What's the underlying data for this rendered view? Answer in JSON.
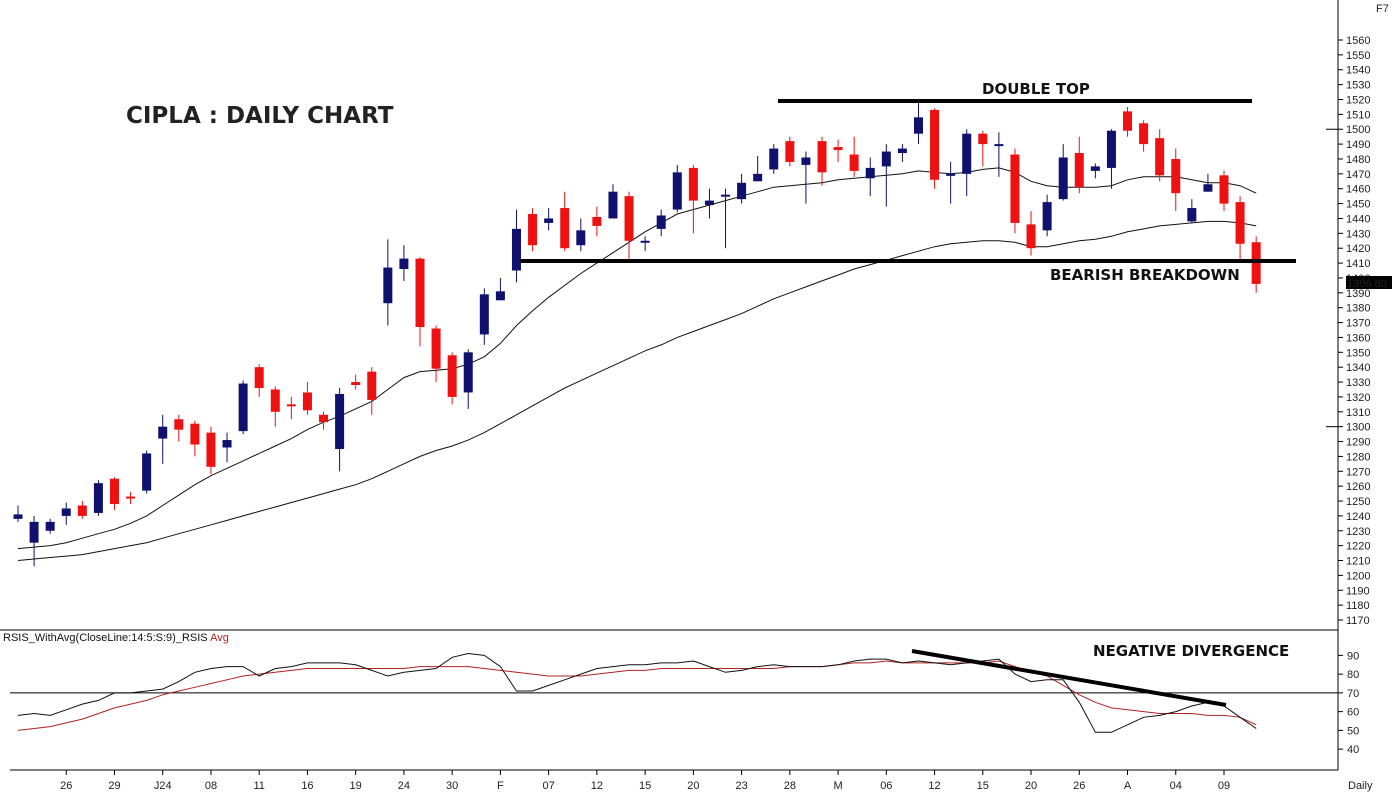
{
  "title": "CIPLA : DAILY CHART",
  "corner_label": "F7",
  "period_label": "Daily",
  "last_price_label": "1396.80",
  "annotations": {
    "double_top": "DOUBLE TOP",
    "breakdown": "BEARISH BREAKDOWN",
    "divergence": "NEGATIVE DIVERGENCE"
  },
  "indicator": {
    "label_prefix": "RSIS_WithAvg(CloseLine:14:5:S:9)_RSIS ",
    "label_avg": "Avg",
    "line_color": "#111111",
    "avg_color": "#b22222"
  },
  "colors": {
    "up": "#10106e",
    "down": "#ee1111",
    "ma": "#111111",
    "trendline": "#000000"
  },
  "chart_data": [
    {
      "type": "candlestick",
      "ylim": [
        1165,
        1565
      ],
      "y_ticks": [
        1170,
        1180,
        1190,
        1200,
        1210,
        1220,
        1230,
        1240,
        1250,
        1260,
        1270,
        1280,
        1290,
        1300,
        1310,
        1320,
        1330,
        1340,
        1350,
        1360,
        1370,
        1380,
        1390,
        1400,
        1410,
        1420,
        1430,
        1440,
        1450,
        1460,
        1470,
        1480,
        1490,
        1500,
        1510,
        1520,
        1530,
        1540,
        1550,
        1560
      ],
      "x_ticks": [
        "26",
        "29",
        "J24",
        "08",
        "11",
        "16",
        "19",
        "24",
        "30",
        "F",
        "07",
        "12",
        "15",
        "20",
        "23",
        "28",
        "M",
        "06",
        "12",
        "15",
        "20",
        "26",
        "A",
        "04",
        "09"
      ],
      "x_tick_index": [
        3,
        6,
        9,
        12,
        15,
        18,
        21,
        24,
        27,
        30,
        33,
        36,
        39,
        42,
        45,
        48,
        51,
        54,
        57,
        60,
        63,
        66,
        69,
        72,
        75
      ],
      "candles": [
        [
          1238,
          1241,
          1236,
          1247
        ],
        [
          1222,
          1236,
          1206,
          1240
        ],
        [
          1230,
          1236,
          1228,
          1238
        ],
        [
          1240,
          1245,
          1234,
          1249
        ],
        [
          1247,
          1240,
          1238,
          1250
        ],
        [
          1242,
          1262,
          1240,
          1264
        ],
        [
          1265,
          1248,
          1244,
          1266
        ],
        [
          1253,
          1252,
          1248,
          1256
        ],
        [
          1257,
          1282,
          1255,
          1284
        ],
        [
          1292,
          1300,
          1275,
          1308
        ],
        [
          1305,
          1298,
          1290,
          1308
        ],
        [
          1302,
          1288,
          1280,
          1304
        ],
        [
          1296,
          1273,
          1268,
          1300
        ],
        [
          1286,
          1291,
          1276,
          1296
        ],
        [
          1297,
          1329,
          1295,
          1331
        ],
        [
          1340,
          1326,
          1320,
          1342
        ],
        [
          1325,
          1310,
          1300,
          1327
        ],
        [
          1315,
          1314,
          1305,
          1320
        ],
        [
          1323,
          1311,
          1308,
          1330
        ],
        [
          1308,
          1303,
          1298,
          1310
        ],
        [
          1285,
          1322,
          1270,
          1326
        ],
        [
          1330,
          1328,
          1325,
          1335
        ],
        [
          1337,
          1318,
          1308,
          1340
        ],
        [
          1383,
          1407,
          1368,
          1426
        ],
        [
          1406,
          1413,
          1398,
          1422
        ],
        [
          1413,
          1367,
          1354,
          1414
        ],
        [
          1366,
          1339,
          1330,
          1368
        ],
        [
          1348,
          1320,
          1315,
          1350
        ],
        [
          1323,
          1350,
          1312,
          1352
        ],
        [
          1362,
          1389,
          1355,
          1393
        ],
        [
          1385,
          1391,
          1385,
          1400
        ],
        [
          1405,
          1433,
          1397,
          1446
        ],
        [
          1443,
          1422,
          1418,
          1447
        ],
        [
          1437,
          1440,
          1432,
          1447
        ],
        [
          1447,
          1420,
          1418,
          1458
        ],
        [
          1422,
          1432,
          1418,
          1440
        ],
        [
          1441,
          1435,
          1428,
          1448
        ],
        [
          1440,
          1458,
          1440,
          1463
        ],
        [
          1455,
          1425,
          1410,
          1458
        ],
        [
          1425,
          1425,
          1418,
          1428
        ],
        [
          1433,
          1442,
          1428,
          1446
        ],
        [
          1446,
          1471,
          1444,
          1476
        ],
        [
          1474,
          1452,
          1430,
          1476
        ],
        [
          1449,
          1452,
          1440,
          1460
        ],
        [
          1455,
          1456,
          1420,
          1460
        ],
        [
          1453,
          1464,
          1450,
          1470
        ],
        [
          1465,
          1470,
          1465,
          1482
        ],
        [
          1473,
          1487,
          1470,
          1490
        ],
        [
          1492,
          1478,
          1475,
          1495
        ],
        [
          1476,
          1481,
          1450,
          1485
        ],
        [
          1492,
          1471,
          1462,
          1495
        ],
        [
          1488,
          1486,
          1478,
          1493
        ],
        [
          1483,
          1472,
          1468,
          1495
        ],
        [
          1467,
          1474,
          1455,
          1481
        ],
        [
          1475,
          1485,
          1448,
          1490
        ],
        [
          1484,
          1487,
          1478,
          1490
        ],
        [
          1497,
          1508,
          1490,
          1518
        ],
        [
          1513,
          1466,
          1460,
          1514
        ],
        [
          1470,
          1470,
          1450,
          1478
        ],
        [
          1470,
          1497,
          1455,
          1500
        ],
        [
          1497,
          1490,
          1475,
          1499
        ],
        [
          1490,
          1490,
          1468,
          1498
        ],
        [
          1483,
          1437,
          1430,
          1487
        ],
        [
          1436,
          1420,
          1415,
          1445
        ],
        [
          1432,
          1451,
          1428,
          1456
        ],
        [
          1453,
          1481,
          1452,
          1490
        ],
        [
          1484,
          1461,
          1457,
          1495
        ],
        [
          1472,
          1475,
          1467,
          1477
        ],
        [
          1474,
          1499,
          1460,
          1500
        ],
        [
          1512,
          1499,
          1495,
          1515
        ],
        [
          1504,
          1490,
          1485,
          1506
        ],
        [
          1494,
          1469,
          1465,
          1500
        ],
        [
          1480,
          1457,
          1445,
          1487
        ],
        [
          1438,
          1447,
          1437,
          1453
        ],
        [
          1458,
          1463,
          1458,
          1470
        ],
        [
          1469,
          1450,
          1445,
          1472
        ],
        [
          1451,
          1423,
          1410,
          1455
        ],
        [
          1424,
          1396,
          1390,
          1428
        ]
      ],
      "ma_short": [
        1218,
        1219,
        1220,
        1222,
        1225,
        1228,
        1231,
        1235,
        1240,
        1247,
        1254,
        1261,
        1267,
        1272,
        1277,
        1282,
        1287,
        1292,
        1298,
        1303,
        1307,
        1312,
        1317,
        1325,
        1333,
        1337,
        1338,
        1339,
        1342,
        1347,
        1356,
        1368,
        1378,
        1387,
        1395,
        1403,
        1410,
        1417,
        1424,
        1431,
        1437,
        1443,
        1446,
        1449,
        1452,
        1455,
        1458,
        1461,
        1462,
        1463,
        1464,
        1466,
        1467,
        1468,
        1469,
        1470,
        1472,
        1471,
        1470,
        1471,
        1473,
        1474,
        1471,
        1465,
        1462,
        1461,
        1461,
        1461,
        1462,
        1466,
        1468,
        1468,
        1468,
        1466,
        1464,
        1464,
        1462,
        1457
      ],
      "ma_long": [
        1210,
        1211,
        1212,
        1213,
        1214,
        1216,
        1218,
        1220,
        1222,
        1225,
        1228,
        1231,
        1234,
        1237,
        1240,
        1243,
        1246,
        1249,
        1252,
        1255,
        1258,
        1261,
        1265,
        1270,
        1275,
        1280,
        1284,
        1287,
        1291,
        1296,
        1302,
        1308,
        1314,
        1320,
        1326,
        1331,
        1336,
        1341,
        1346,
        1351,
        1355,
        1360,
        1364,
        1368,
        1372,
        1376,
        1381,
        1386,
        1390,
        1394,
        1398,
        1402,
        1406,
        1409,
        1412,
        1415,
        1418,
        1421,
        1423,
        1424,
        1425,
        1425,
        1424,
        1421,
        1421,
        1423,
        1425,
        1426,
        1428,
        1431,
        1433,
        1435,
        1436,
        1437,
        1438,
        1438,
        1437,
        1435
      ]
    },
    {
      "type": "line",
      "title": "RSIS_WithAvg(CloseLine:14:5:S:9)_RSIS Avg",
      "ylim": [
        31,
        95
      ],
      "y_ticks": [
        40,
        50,
        60,
        70,
        80,
        90
      ],
      "reference_line": 70,
      "series": [
        {
          "name": "RSIS",
          "values": [
            58,
            59,
            58,
            61,
            64,
            66,
            70,
            70,
            71,
            72,
            76,
            81,
            83,
            84,
            84,
            79,
            83,
            84,
            86,
            86,
            86,
            85,
            82,
            79,
            81,
            82,
            83,
            89,
            91,
            90,
            84,
            71,
            71,
            74,
            77,
            80,
            83,
            84,
            85,
            85,
            86,
            86,
            87,
            84,
            81,
            82,
            84,
            85,
            84,
            84,
            84,
            85,
            87,
            88,
            88,
            86,
            87,
            86,
            85,
            86,
            87,
            88,
            80,
            76,
            77,
            77,
            65,
            49,
            49,
            53,
            57,
            58,
            60,
            63,
            65,
            63,
            57,
            51
          ]
        },
        {
          "name": "Avg",
          "values": [
            50,
            51,
            52,
            54,
            56,
            59,
            62,
            64,
            66,
            69,
            71,
            73,
            75,
            77,
            79,
            80,
            81,
            82,
            83,
            83,
            83,
            83,
            83,
            83,
            83,
            84,
            84,
            84,
            84,
            83,
            82,
            81,
            80,
            79,
            79,
            79,
            80,
            81,
            82,
            82,
            83,
            83,
            83,
            83,
            83,
            83,
            83,
            83,
            84,
            84,
            84,
            85,
            86,
            86,
            87,
            86,
            86,
            86,
            86,
            86,
            86,
            87,
            84,
            81,
            79,
            74,
            69,
            65,
            62,
            61,
            60,
            59,
            59,
            59,
            58,
            58,
            57,
            53
          ]
        }
      ]
    }
  ]
}
